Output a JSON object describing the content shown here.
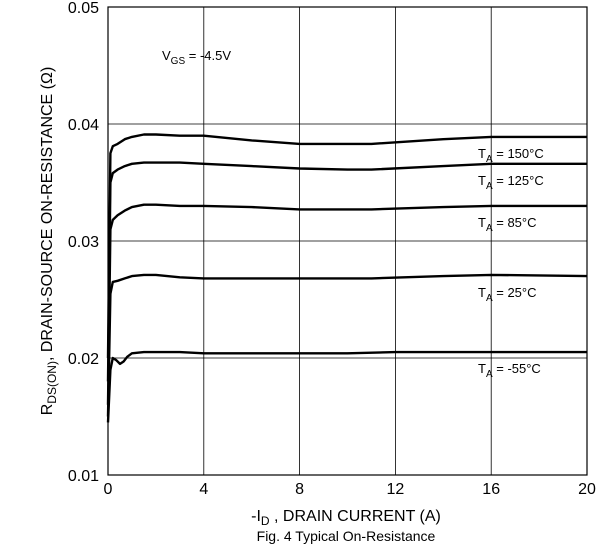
{
  "chart_data": {
    "type": "line",
    "xlabel": {
      "prefix": "-I",
      "sub": "D",
      "suffix": " , DRAIN CURRENT (A)"
    },
    "ylabel": {
      "prefix": "R",
      "sub": "DS(ON)",
      "suffix": ", DRAIN-SOURCE ON-RESISTANCE (Ω)"
    },
    "condition": {
      "prefix": "V",
      "sub": "GS",
      "suffix": " = -4.5V"
    },
    "caption": "Fig. 4 Typical On-Resistance",
    "xlim": [
      0,
      20
    ],
    "ylim": [
      0.01,
      0.05
    ],
    "xticks": [
      "0",
      "4",
      "8",
      "12",
      "16",
      "20"
    ],
    "yticks": [
      "0.01",
      "0.02",
      "0.03",
      "0.04",
      "0.05"
    ],
    "grid": true,
    "series": [
      {
        "name": {
          "prefix": "T",
          "sub": "A",
          "suffix": " = 150°C"
        },
        "x": [
          0.0,
          0.1,
          0.2,
          0.4,
          0.7,
          1.0,
          1.5,
          2.0,
          3.0,
          4.0,
          6.0,
          8.0,
          10.0,
          11.0,
          14.0,
          16.0,
          20.0
        ],
        "y": [
          0.02,
          0.0375,
          0.0381,
          0.0383,
          0.0387,
          0.0389,
          0.0391,
          0.0391,
          0.039,
          0.039,
          0.0386,
          0.0383,
          0.0383,
          0.0383,
          0.0387,
          0.0389,
          0.0389
        ]
      },
      {
        "name": {
          "prefix": "T",
          "sub": "A",
          "suffix": " = 125°C"
        },
        "x": [
          0.0,
          0.1,
          0.2,
          0.4,
          0.7,
          1.0,
          1.5,
          2.0,
          3.0,
          4.0,
          6.0,
          8.0,
          10.0,
          11.0,
          14.0,
          16.0,
          20.0
        ],
        "y": [
          0.018,
          0.035,
          0.0358,
          0.0361,
          0.0364,
          0.0366,
          0.0367,
          0.0367,
          0.0367,
          0.0366,
          0.0364,
          0.0362,
          0.0361,
          0.0361,
          0.0364,
          0.0366,
          0.0366
        ]
      },
      {
        "name": {
          "prefix": "T",
          "sub": "A",
          "suffix": " = 85°C"
        },
        "x": [
          0.0,
          0.1,
          0.2,
          0.4,
          0.7,
          1.0,
          1.5,
          2.0,
          3.0,
          4.0,
          6.0,
          8.0,
          10.0,
          11.0,
          14.0,
          16.0,
          20.0
        ],
        "y": [
          0.016,
          0.031,
          0.0318,
          0.0322,
          0.0326,
          0.0329,
          0.0331,
          0.0331,
          0.033,
          0.033,
          0.0329,
          0.0327,
          0.0327,
          0.0327,
          0.0329,
          0.033,
          0.033
        ]
      },
      {
        "name": {
          "prefix": "T",
          "sub": "A",
          "suffix": " = 25°C"
        },
        "x": [
          0.0,
          0.1,
          0.2,
          0.4,
          0.7,
          1.0,
          1.5,
          2.0,
          3.0,
          4.0,
          6.0,
          8.0,
          10.0,
          11.0,
          14.0,
          16.0,
          20.0
        ],
        "y": [
          0.015,
          0.0255,
          0.0265,
          0.0266,
          0.0268,
          0.027,
          0.0271,
          0.0271,
          0.0269,
          0.0268,
          0.0268,
          0.0268,
          0.0268,
          0.0268,
          0.027,
          0.0271,
          0.027
        ]
      },
      {
        "name": {
          "prefix": "T",
          "sub": "A",
          "suffix": " = -55°C"
        },
        "x": [
          0.0,
          0.1,
          0.2,
          0.35,
          0.5,
          0.65,
          0.8,
          1.0,
          1.5,
          2.0,
          3.0,
          4.0,
          6.0,
          8.0,
          10.0,
          12.0,
          16.0,
          20.0
        ],
        "y": [
          0.0145,
          0.019,
          0.02,
          0.0198,
          0.0195,
          0.0197,
          0.0201,
          0.0204,
          0.0205,
          0.0205,
          0.0205,
          0.0204,
          0.0204,
          0.0204,
          0.0204,
          0.0205,
          0.0205,
          0.0205
        ]
      }
    ]
  }
}
